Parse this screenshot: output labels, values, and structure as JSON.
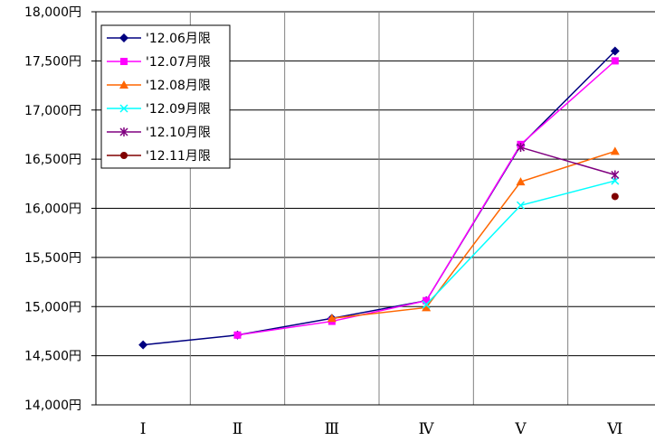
{
  "chart_data": {
    "type": "line",
    "categories": [
      "Ⅰ",
      "Ⅱ",
      "Ⅲ",
      "Ⅳ",
      "Ⅴ",
      "Ⅵ"
    ],
    "ylim": [
      14000,
      18000
    ],
    "yticks": [
      {
        "value": 18000,
        "label": "18,000円"
      },
      {
        "value": 17500,
        "label": "17,500円"
      },
      {
        "value": 17000,
        "label": "17,000円"
      },
      {
        "value": 16500,
        "label": "16,500円"
      },
      {
        "value": 16000,
        "label": "16,000円"
      },
      {
        "value": 15500,
        "label": "15,500円"
      },
      {
        "value": 15000,
        "label": "15,000円"
      },
      {
        "value": 14500,
        "label": "14,500円"
      },
      {
        "value": 14000,
        "label": "14,000円"
      }
    ],
    "grid": true,
    "legend_position": "top-left",
    "series": [
      {
        "name": "'12.06月限",
        "color": "#000080",
        "marker": "diamond",
        "values": [
          14610,
          14710,
          14880,
          15060,
          16640,
          17600
        ]
      },
      {
        "name": "'12.07月限",
        "color": "#ff00ff",
        "marker": "square",
        "values": [
          null,
          14710,
          14850,
          15060,
          16650,
          17500
        ]
      },
      {
        "name": "'12.08月限",
        "color": "#ff6600",
        "marker": "triangle",
        "values": [
          null,
          null,
          14880,
          14990,
          16270,
          16580
        ]
      },
      {
        "name": "'12.09月限",
        "color": "#00ffff",
        "marker": "x",
        "values": [
          null,
          null,
          null,
          15020,
          16030,
          16280
        ]
      },
      {
        "name": "'12.10月限",
        "color": "#800080",
        "marker": "star",
        "values": [
          null,
          null,
          null,
          null,
          16620,
          16340
        ]
      },
      {
        "name": "'12.11月限",
        "color": "#800000",
        "marker": "circle",
        "values": [
          null,
          null,
          null,
          null,
          null,
          16120
        ]
      }
    ]
  }
}
